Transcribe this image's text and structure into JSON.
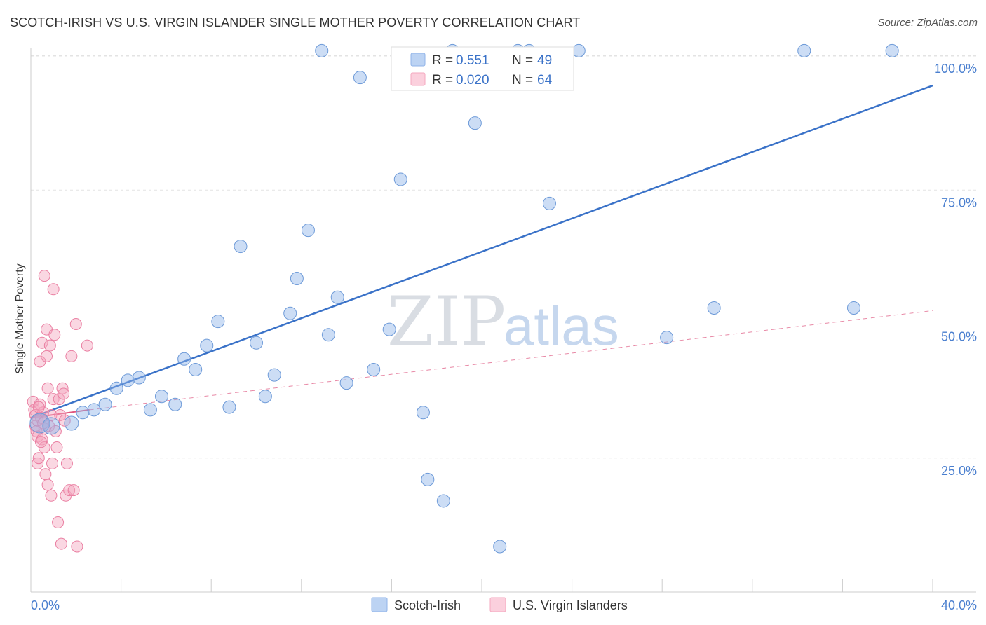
{
  "chart_data": {
    "type": "scatter",
    "title": "SCOTCH-IRISH VS U.S. VIRGIN ISLANDER SINGLE MOTHER POVERTY CORRELATION CHART",
    "source": "Source: ZipAtlas.com",
    "ylabel": "Single Mother Poverty",
    "xlim": [
      0,
      40
    ],
    "ylim": [
      0,
      105
    ],
    "x_tick_labels": [
      "0.0%",
      "40.0%"
    ],
    "y_tick_labels": [
      "100.0%",
      "75.0%",
      "50.0%",
      "25.0%"
    ],
    "y_tick_values": [
      100,
      75,
      50,
      25
    ],
    "watermark": {
      "part1": "ZIP",
      "part2": "atlas"
    },
    "legend": [
      {
        "name": "Scotch-Irish",
        "r_label": "R =",
        "r_value": "0.551",
        "n_label": "N =",
        "n_value": "49",
        "color": "#8fb3e8"
      },
      {
        "name": "U.S. Virgin Islanders",
        "r_label": "R =",
        "r_value": "0.020",
        "n_label": "N =",
        "n_value": "64",
        "color": "#f4a7bf"
      }
    ],
    "series": [
      {
        "name": "Scotch-Irish",
        "color": "#8fb3e8",
        "stroke": "#6d9ad8",
        "trend": {
          "x": [
            0,
            40
          ],
          "y": [
            32.5,
            94.5
          ],
          "color": "#3a72c8",
          "dashed": false
        },
        "points": [
          {
            "x": 0.4,
            "y": 31.5,
            "s": 14
          },
          {
            "x": 0.9,
            "y": 31.0,
            "s": 12
          },
          {
            "x": 1.8,
            "y": 31.5,
            "s": 10
          },
          {
            "x": 2.3,
            "y": 33.5,
            "s": 9
          },
          {
            "x": 2.8,
            "y": 34.0,
            "s": 9
          },
          {
            "x": 3.3,
            "y": 35.0,
            "s": 9
          },
          {
            "x": 3.8,
            "y": 38.0,
            "s": 9
          },
          {
            "x": 4.3,
            "y": 39.5,
            "s": 9
          },
          {
            "x": 4.8,
            "y": 40.0,
            "s": 9
          },
          {
            "x": 5.3,
            "y": 34.0,
            "s": 9
          },
          {
            "x": 5.8,
            "y": 36.5,
            "s": 9
          },
          {
            "x": 6.4,
            "y": 35.0,
            "s": 9
          },
          {
            "x": 6.8,
            "y": 43.5,
            "s": 9
          },
          {
            "x": 7.3,
            "y": 41.5,
            "s": 9
          },
          {
            "x": 7.8,
            "y": 46.0,
            "s": 9
          },
          {
            "x": 8.3,
            "y": 50.5,
            "s": 9
          },
          {
            "x": 8.8,
            "y": 34.5,
            "s": 9
          },
          {
            "x": 9.3,
            "y": 64.5,
            "s": 9
          },
          {
            "x": 10.0,
            "y": 46.5,
            "s": 9
          },
          {
            "x": 10.4,
            "y": 36.5,
            "s": 9
          },
          {
            "x": 10.8,
            "y": 40.5,
            "s": 9
          },
          {
            "x": 11.5,
            "y": 52.0,
            "s": 9
          },
          {
            "x": 11.8,
            "y": 58.5,
            "s": 9
          },
          {
            "x": 12.3,
            "y": 67.5,
            "s": 9
          },
          {
            "x": 12.9,
            "y": 101.0,
            "s": 9
          },
          {
            "x": 13.2,
            "y": 48.0,
            "s": 9
          },
          {
            "x": 13.6,
            "y": 55.0,
            "s": 9
          },
          {
            "x": 14.0,
            "y": 39.0,
            "s": 9
          },
          {
            "x": 14.6,
            "y": 96.0,
            "s": 9
          },
          {
            "x": 15.2,
            "y": 41.5,
            "s": 9
          },
          {
            "x": 15.9,
            "y": 49.0,
            "s": 9
          },
          {
            "x": 16.4,
            "y": 77.0,
            "s": 9
          },
          {
            "x": 17.4,
            "y": 33.5,
            "s": 9
          },
          {
            "x": 17.6,
            "y": 21.0,
            "s": 9
          },
          {
            "x": 18.3,
            "y": 17.0,
            "s": 9
          },
          {
            "x": 18.7,
            "y": 101.0,
            "s": 9
          },
          {
            "x": 19.7,
            "y": 87.5,
            "s": 9
          },
          {
            "x": 20.8,
            "y": 8.5,
            "s": 9
          },
          {
            "x": 21.6,
            "y": 101.0,
            "s": 9
          },
          {
            "x": 22.1,
            "y": 101.0,
            "s": 9
          },
          {
            "x": 23.0,
            "y": 72.5,
            "s": 9
          },
          {
            "x": 24.3,
            "y": 101.0,
            "s": 9
          },
          {
            "x": 28.2,
            "y": 47.5,
            "s": 9
          },
          {
            "x": 30.3,
            "y": 53.0,
            "s": 9
          },
          {
            "x": 34.3,
            "y": 101.0,
            "s": 9
          },
          {
            "x": 36.5,
            "y": 53.0,
            "s": 9
          },
          {
            "x": 38.2,
            "y": 101.0,
            "s": 9
          }
        ]
      },
      {
        "name": "U.S. Virgin Islanders",
        "color": "#f4a7bf",
        "stroke": "#ea7fa2",
        "trend_solid": {
          "x": [
            0,
            2.6
          ],
          "y": [
            32.5,
            34.0
          ],
          "color": "#e0587f"
        },
        "trend": {
          "x": [
            2.6,
            40
          ],
          "y": [
            34.0,
            52.5
          ],
          "color": "#e889a6",
          "dashed": true
        },
        "points": [
          {
            "x": 0.1,
            "y": 35.5,
            "s": 8
          },
          {
            "x": 0.15,
            "y": 34.0,
            "s": 8
          },
          {
            "x": 0.2,
            "y": 33.0,
            "s": 8
          },
          {
            "x": 0.2,
            "y": 31.0,
            "s": 8
          },
          {
            "x": 0.25,
            "y": 30.0,
            "s": 8
          },
          {
            "x": 0.3,
            "y": 29.0,
            "s": 8
          },
          {
            "x": 0.3,
            "y": 24.0,
            "s": 8
          },
          {
            "x": 0.35,
            "y": 25.0,
            "s": 8
          },
          {
            "x": 0.4,
            "y": 35.0,
            "s": 8
          },
          {
            "x": 0.4,
            "y": 43.0,
            "s": 8
          },
          {
            "x": 0.45,
            "y": 32.5,
            "s": 8
          },
          {
            "x": 0.5,
            "y": 28.5,
            "s": 8
          },
          {
            "x": 0.5,
            "y": 46.5,
            "s": 8
          },
          {
            "x": 0.55,
            "y": 33.5,
            "s": 8
          },
          {
            "x": 0.6,
            "y": 59.0,
            "s": 8
          },
          {
            "x": 0.6,
            "y": 27.0,
            "s": 8
          },
          {
            "x": 0.65,
            "y": 22.0,
            "s": 8
          },
          {
            "x": 0.7,
            "y": 49.0,
            "s": 8
          },
          {
            "x": 0.7,
            "y": 44.0,
            "s": 8
          },
          {
            "x": 0.75,
            "y": 38.0,
            "s": 8
          },
          {
            "x": 0.75,
            "y": 20.0,
            "s": 8
          },
          {
            "x": 0.8,
            "y": 31.0,
            "s": 8
          },
          {
            "x": 0.85,
            "y": 46.0,
            "s": 8
          },
          {
            "x": 0.9,
            "y": 18.0,
            "s": 8
          },
          {
            "x": 0.9,
            "y": 33.0,
            "s": 8
          },
          {
            "x": 0.95,
            "y": 24.0,
            "s": 8
          },
          {
            "x": 1.0,
            "y": 56.5,
            "s": 8
          },
          {
            "x": 1.0,
            "y": 36.0,
            "s": 8
          },
          {
            "x": 1.05,
            "y": 48.0,
            "s": 8
          },
          {
            "x": 1.1,
            "y": 30.0,
            "s": 8
          },
          {
            "x": 1.15,
            "y": 27.0,
            "s": 8
          },
          {
            "x": 1.2,
            "y": 13.0,
            "s": 8
          },
          {
            "x": 1.25,
            "y": 36.0,
            "s": 8
          },
          {
            "x": 1.3,
            "y": 33.0,
            "s": 8
          },
          {
            "x": 1.35,
            "y": 9.0,
            "s": 8
          },
          {
            "x": 1.4,
            "y": 38.0,
            "s": 8
          },
          {
            "x": 1.45,
            "y": 37.0,
            "s": 8
          },
          {
            "x": 1.5,
            "y": 32.0,
            "s": 8
          },
          {
            "x": 1.55,
            "y": 18.0,
            "s": 8
          },
          {
            "x": 1.6,
            "y": 24.0,
            "s": 8
          },
          {
            "x": 1.7,
            "y": 19.0,
            "s": 8
          },
          {
            "x": 1.8,
            "y": 44.0,
            "s": 8
          },
          {
            "x": 1.9,
            "y": 19.0,
            "s": 8
          },
          {
            "x": 2.0,
            "y": 50.0,
            "s": 8
          },
          {
            "x": 2.05,
            "y": 8.5,
            "s": 8
          },
          {
            "x": 2.5,
            "y": 46.0,
            "s": 8
          },
          {
            "x": 0.3,
            "y": 32.0,
            "s": 8
          },
          {
            "x": 0.6,
            "y": 30.5,
            "s": 8
          },
          {
            "x": 0.45,
            "y": 28.0,
            "s": 8
          },
          {
            "x": 0.55,
            "y": 31.5,
            "s": 8
          },
          {
            "x": 0.35,
            "y": 34.5,
            "s": 8
          }
        ]
      }
    ]
  }
}
